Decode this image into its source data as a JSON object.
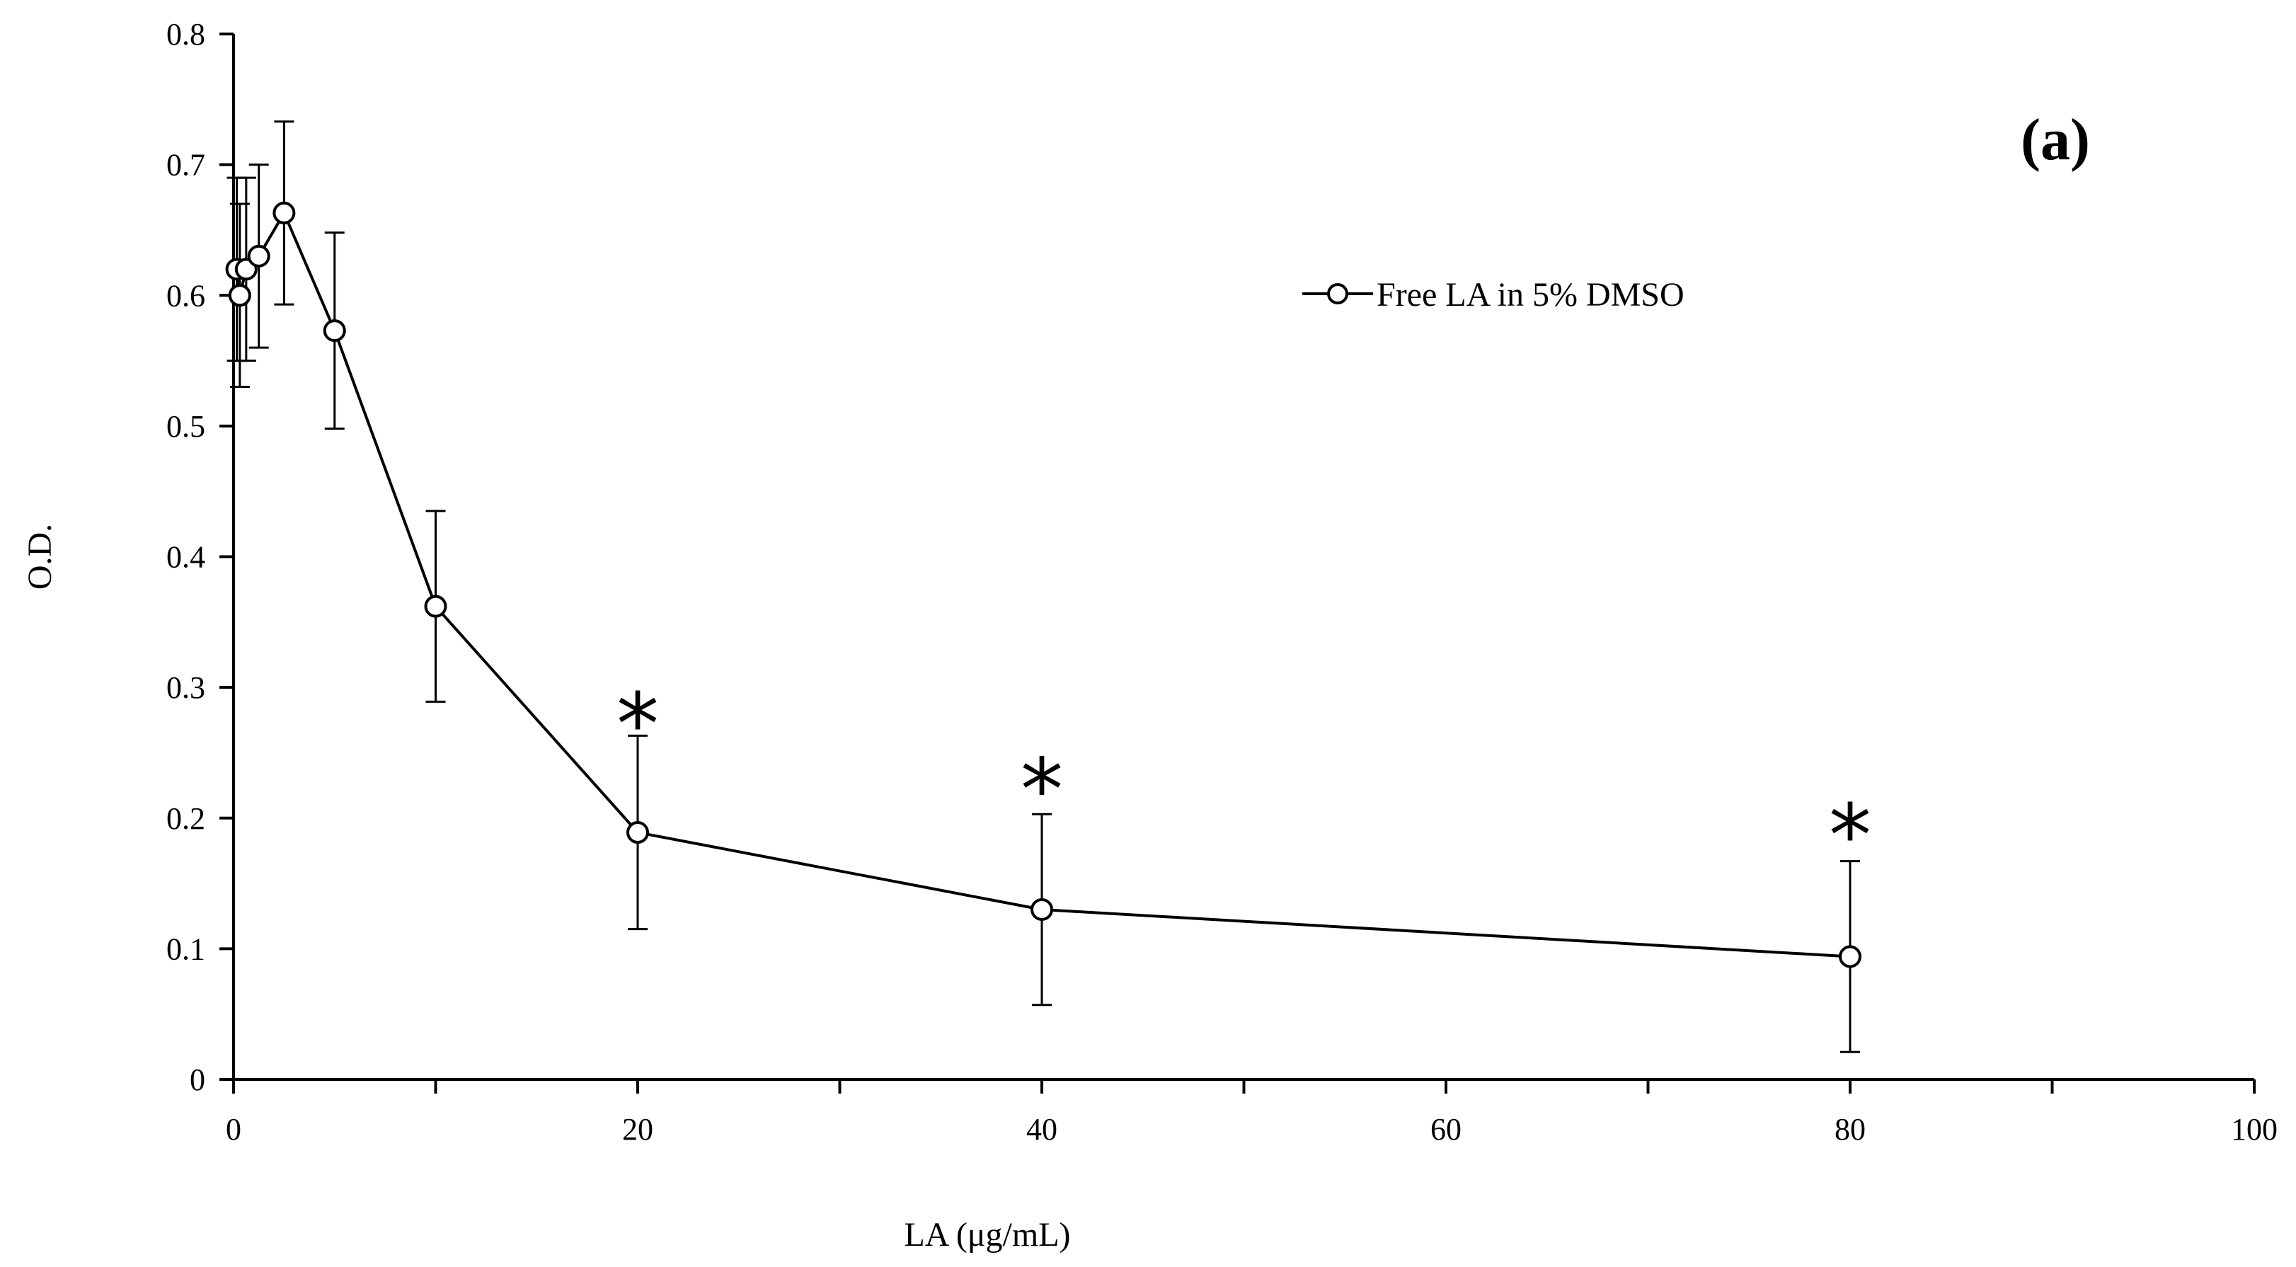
{
  "chart_data": {
    "type": "line",
    "title": "",
    "panel_label": "(a)",
    "xlabel": "LA (μg/mL)",
    "ylabel": "O.D.",
    "xlim": [
      0,
      100
    ],
    "ylim": [
      0,
      0.8
    ],
    "x_ticks": [
      "0",
      "20",
      "40",
      "60",
      "80",
      "100"
    ],
    "y_ticks": [
      "0",
      "0.1",
      "0.2",
      "0.3",
      "0.4",
      "0.5",
      "0.6",
      "0.7",
      "0.8"
    ],
    "legend_placement": "upper-center-right",
    "grid": false,
    "series": [
      {
        "name": "Free LA in 5% DMSO",
        "marker": "open-circle",
        "color": "#000000",
        "points": [
          {
            "x": 0.16,
            "y": 0.62,
            "err": 0.07
          },
          {
            "x": 0.31,
            "y": 0.6,
            "err": 0.07
          },
          {
            "x": 0.625,
            "y": 0.62,
            "err": 0.07
          },
          {
            "x": 1.25,
            "y": 0.63,
            "err": 0.07
          },
          {
            "x": 2.5,
            "y": 0.663,
            "err": 0.07
          },
          {
            "x": 5,
            "y": 0.573,
            "err": 0.075
          },
          {
            "x": 10,
            "y": 0.362,
            "err": 0.073
          },
          {
            "x": 20,
            "y": 0.189,
            "err": 0.074
          },
          {
            "x": 40,
            "y": 0.13,
            "err": 0.073
          },
          {
            "x": 80,
            "y": 0.094,
            "err": 0.073
          }
        ]
      }
    ],
    "annotations": [
      {
        "text": "*",
        "x": 20,
        "y": 0.26
      },
      {
        "text": "*",
        "x": 40,
        "y": 0.21
      },
      {
        "text": "*",
        "x": 80,
        "y": 0.175
      }
    ]
  }
}
